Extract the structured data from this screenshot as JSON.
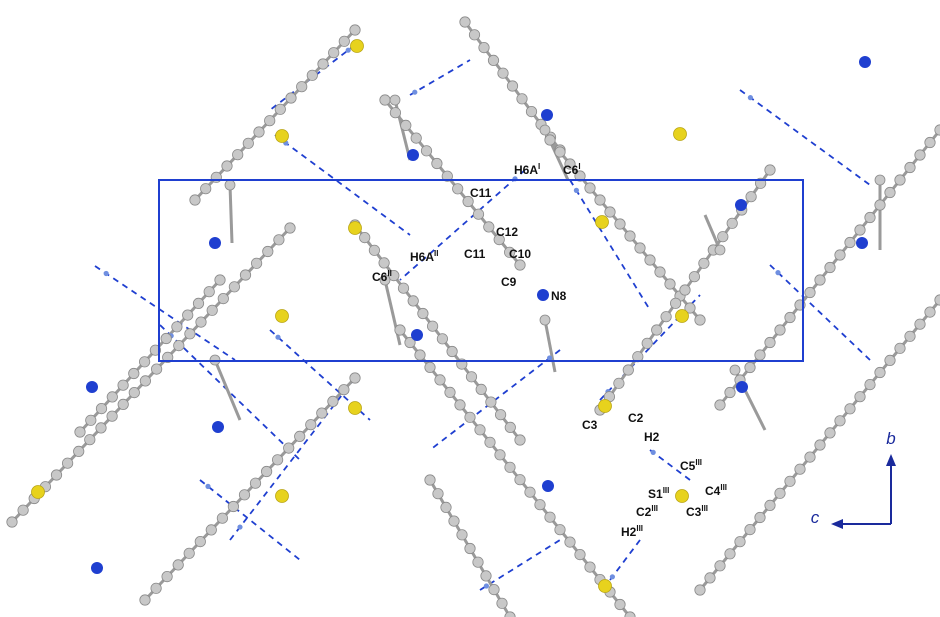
{
  "colors": {
    "carbon": "#c8c8c8",
    "carbon_edge": "#8a8a8a",
    "nitrogen": "#1f3fd0",
    "sulfur": "#e7d21d",
    "hydrogen": "#6f8fe0",
    "bond": "#9a9a9a",
    "hbond": "#1f3fd0",
    "cell": "#1f3fd0",
    "axis": "#1a2a9c"
  },
  "axes": {
    "b": "b",
    "c": "c"
  },
  "labels": [
    {
      "id": "h6a-i",
      "base": "H6A",
      "sup": "I"
    },
    {
      "id": "c6-i",
      "base": "C6",
      "sup": "I"
    },
    {
      "id": "c11-a",
      "base": "C11",
      "sup": ""
    },
    {
      "id": "c12",
      "base": "C12",
      "sup": ""
    },
    {
      "id": "h6a-ii",
      "base": "H6A",
      "sup": "II"
    },
    {
      "id": "c11-b",
      "base": "C11",
      "sup": ""
    },
    {
      "id": "c10",
      "base": "C10",
      "sup": ""
    },
    {
      "id": "c6-ii",
      "base": "C6",
      "sup": "II"
    },
    {
      "id": "c9",
      "base": "C9",
      "sup": ""
    },
    {
      "id": "n8",
      "base": "N8",
      "sup": ""
    },
    {
      "id": "c2",
      "base": "C2",
      "sup": ""
    },
    {
      "id": "c3",
      "base": "C3",
      "sup": ""
    },
    {
      "id": "h2",
      "base": "H2",
      "sup": ""
    },
    {
      "id": "c5-iii",
      "base": "C5",
      "sup": "III"
    },
    {
      "id": "s1-iii",
      "base": "S1",
      "sup": "III"
    },
    {
      "id": "c4-iii",
      "base": "C4",
      "sup": "III"
    },
    {
      "id": "c2-iii",
      "base": "C2",
      "sup": "III"
    },
    {
      "id": "c3-iii",
      "base": "C3",
      "sup": "III"
    },
    {
      "id": "h2-iii",
      "base": "H2",
      "sup": "III"
    }
  ]
}
